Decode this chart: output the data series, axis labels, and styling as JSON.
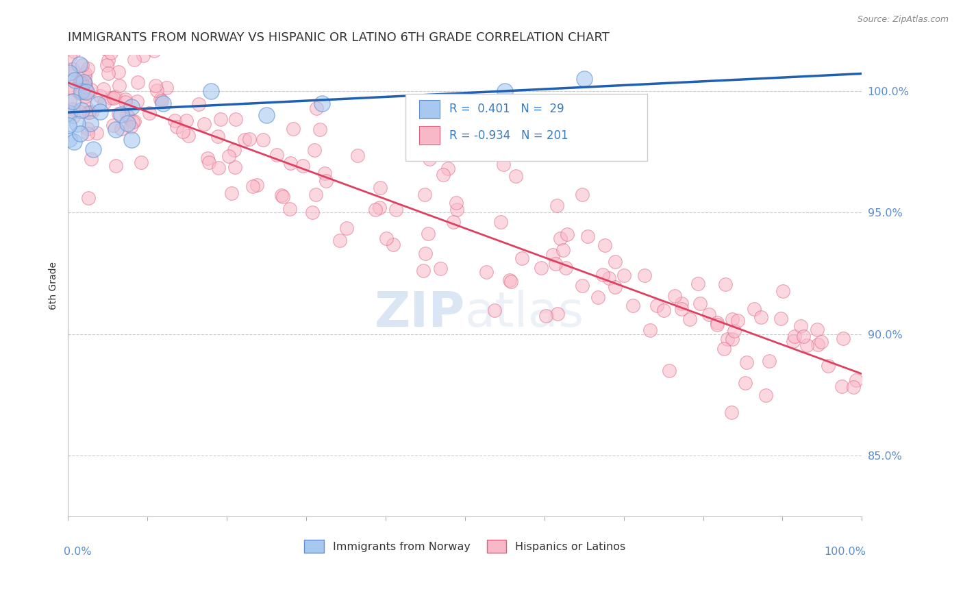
{
  "title": "IMMIGRANTS FROM NORWAY VS HISPANIC OR LATINO 6TH GRADE CORRELATION CHART",
  "ylabel": "6th Grade",
  "source_text": "Source: ZipAtlas.com",
  "watermark_zip": "ZIP",
  "watermark_atlas": "atlas",
  "r_norway": 0.401,
  "n_norway": 29,
  "r_hispanic": -0.934,
  "n_hispanic": 201,
  "blue_color": "#A8C8F0",
  "blue_edge_color": "#6090D0",
  "blue_line_color": "#2060B0",
  "pink_color": "#F8B8C8",
  "pink_edge_color": "#E06080",
  "pink_line_color": "#E04060",
  "legend_labels": [
    "Immigrants from Norway",
    "Hispanics or Latinos"
  ],
  "xmin": 0.0,
  "xmax": 100.0,
  "ymin": 82.5,
  "ymax": 101.5,
  "right_yticks": [
    85.0,
    90.0,
    95.0,
    100.0
  ],
  "background_color": "#FFFFFF",
  "title_fontsize": 13,
  "title_color": "#333333",
  "axis_color": "#5A8ED0",
  "legend_r_color": "#3A7CC0",
  "grid_color": "#CCCCCC",
  "top_grid_y": 100.0
}
